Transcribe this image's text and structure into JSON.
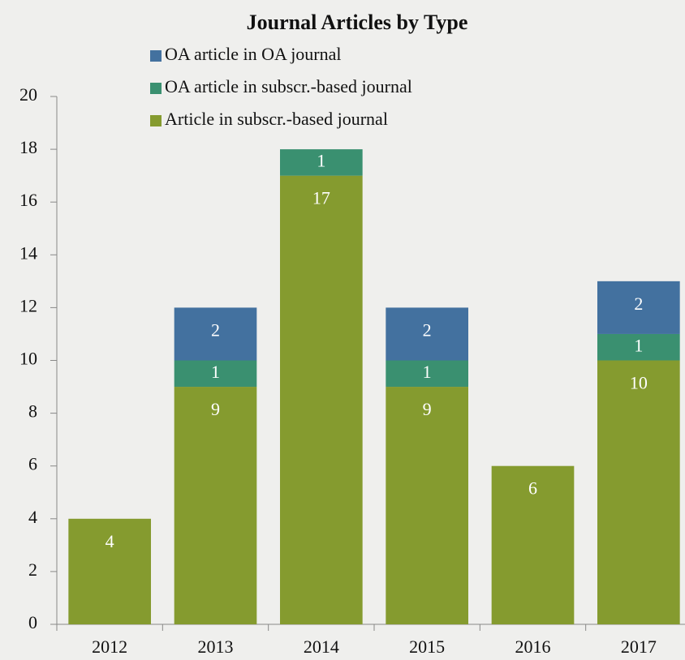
{
  "chart_data": {
    "type": "stacked-bar",
    "title": "Journal Articles by Type",
    "categories": [
      "2012",
      "2013",
      "2014",
      "2015",
      "2016",
      "2017"
    ],
    "series": [
      {
        "name": "Article in subscr.-based journal",
        "color": "#859b2f",
        "values": [
          4,
          9,
          17,
          9,
          6,
          10
        ]
      },
      {
        "name": "OA article in subscr.-based journal",
        "color": "#3a9070",
        "values": [
          null,
          1,
          1,
          1,
          null,
          1
        ]
      },
      {
        "name": "OA article in OA journal",
        "color": "#43719f",
        "values": [
          null,
          2,
          null,
          2,
          null,
          2
        ]
      }
    ],
    "ylim": [
      0,
      20
    ],
    "yticks": [
      0,
      2,
      4,
      6,
      8,
      10,
      12,
      14,
      16,
      18,
      20
    ],
    "grid": false
  }
}
